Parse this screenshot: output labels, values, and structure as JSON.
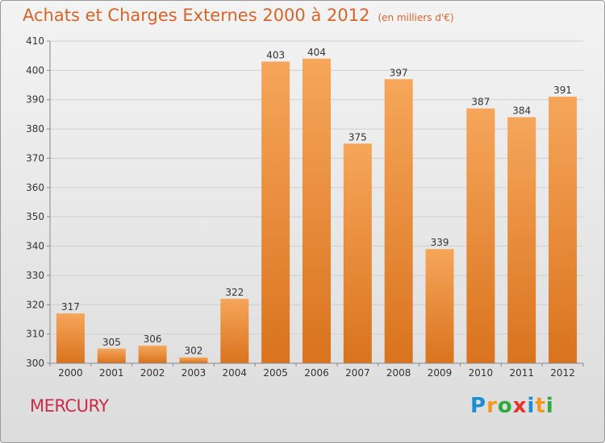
{
  "title": "Achats et Charges Externes 2000 à 2012",
  "unit": "(en milliers d'€)",
  "city": "MERCURY",
  "logo": {
    "text": "Proxiti",
    "letters": [
      "P",
      "r",
      "o",
      "x",
      "i",
      "t",
      "i"
    ],
    "colors": [
      "#1a8fd6",
      "#f29a1f",
      "#2faa3c",
      "#e6342a",
      "#1a8fd6",
      "#f29a1f",
      "#2faa3c"
    ]
  },
  "colors": {
    "bar_light": "#f6a65a",
    "bar_dark": "#d9731e",
    "title": "#d4652a",
    "city": "#cc2a4a"
  },
  "chart_data": {
    "type": "bar",
    "categories": [
      "2000",
      "2001",
      "2002",
      "2003",
      "2004",
      "2005",
      "2006",
      "2007",
      "2008",
      "2009",
      "2010",
      "2011",
      "2012"
    ],
    "values": [
      317,
      305,
      306,
      302,
      322,
      403,
      404,
      375,
      397,
      339,
      387,
      384,
      391
    ],
    "ylim": [
      300,
      410
    ],
    "yticks": [
      300,
      310,
      320,
      330,
      340,
      350,
      360,
      370,
      380,
      390,
      400,
      410
    ],
    "grid": true,
    "data_labels": true
  }
}
